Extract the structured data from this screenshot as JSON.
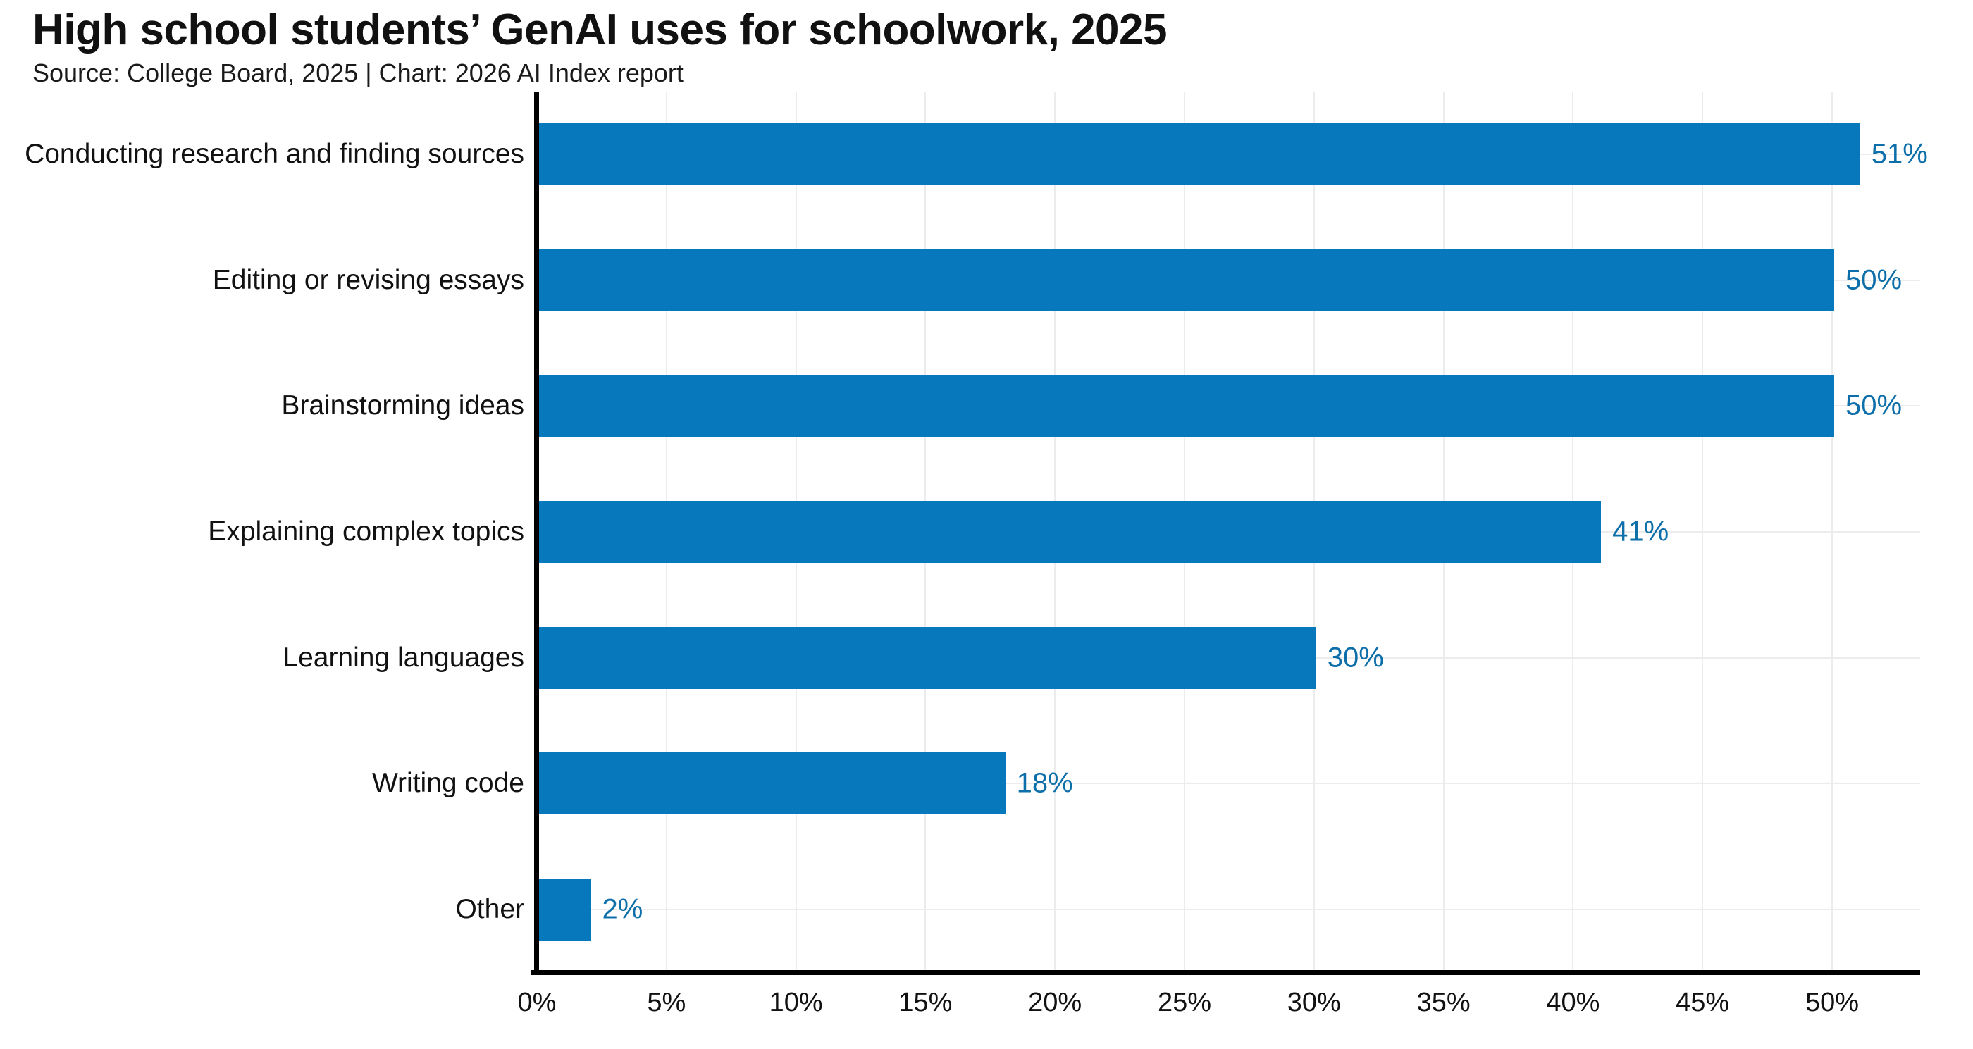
{
  "title": "High school students’ GenAI uses for schoolwork, 2025",
  "subtitle": "Source: College Board, 2025 | Chart: 2026 AI Index report",
  "colors": {
    "bar": "#0878bc",
    "value_label": "#0d6fa9",
    "axis": "#000000",
    "gridline": "#ececec",
    "title_text": "#111111",
    "subtitle_text": "#1a1a1a"
  },
  "chart_data": {
    "type": "bar",
    "orientation": "horizontal",
    "title": "High school students’ GenAI uses for schoolwork, 2025",
    "subtitle": "Source: College Board, 2025 | Chart: 2026 AI Index report",
    "categories": [
      "Conducting research and finding sources",
      "Editing or revising essays",
      "Brainstorming ideas",
      "Explaining complex topics",
      "Learning languages",
      "Writing code",
      "Other"
    ],
    "values": [
      51,
      50,
      50,
      41,
      30,
      18,
      2
    ],
    "value_labels": [
      "51%",
      "50%",
      "50%",
      "41%",
      "30%",
      "18%",
      "2%"
    ],
    "xlabel": "",
    "ylabel": "",
    "xlim": [
      0,
      50
    ],
    "x_tick_values": [
      0,
      5,
      10,
      15,
      20,
      25,
      30,
      35,
      40,
      45,
      50
    ],
    "x_ticks": [
      "0%",
      "5%",
      "10%",
      "15%",
      "20%",
      "25%",
      "30%",
      "35%",
      "40%",
      "45%",
      "50%"
    ],
    "grid": true,
    "legend": false,
    "bar_color": "#0878bc"
  }
}
